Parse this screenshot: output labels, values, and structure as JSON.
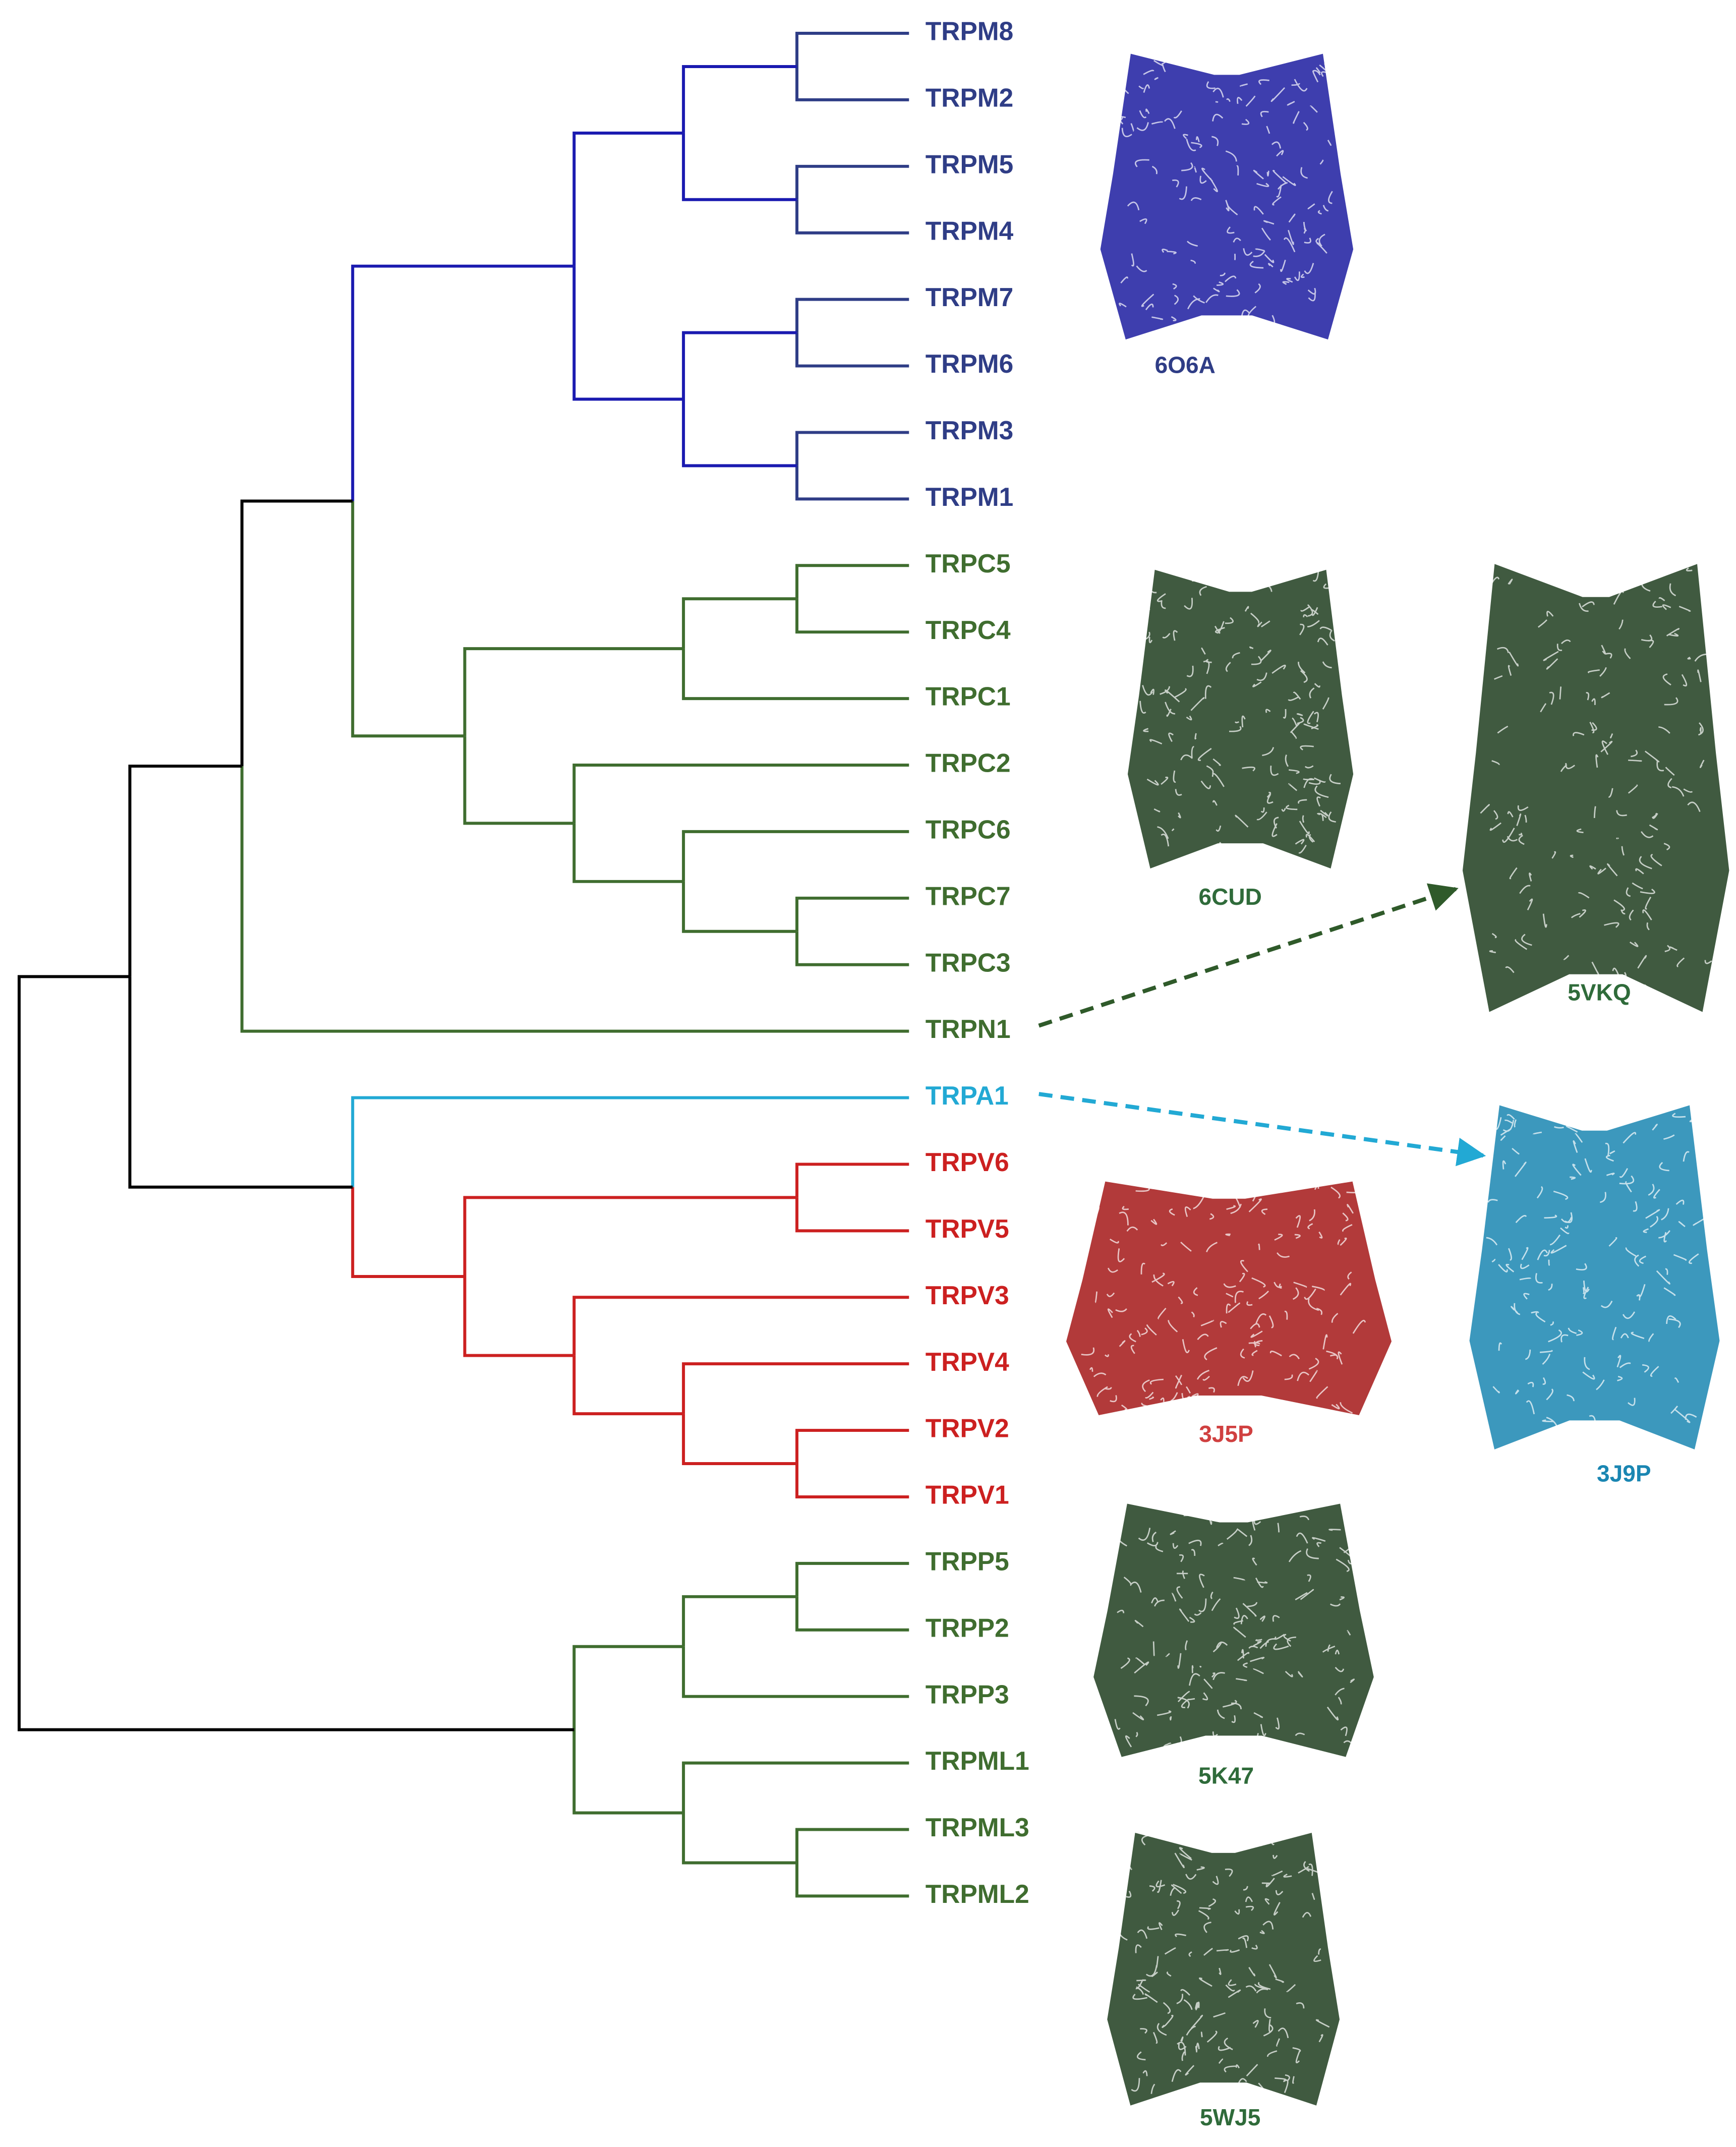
{
  "leaves": [
    {
      "label": "TRPM8",
      "color": "#2f3d86"
    },
    {
      "label": "TRPM2",
      "color": "#2f3d86"
    },
    {
      "label": "TRPM5",
      "color": "#2f3d86"
    },
    {
      "label": "TRPM4",
      "color": "#2f3d86"
    },
    {
      "label": "TRPM7",
      "color": "#2f3d86"
    },
    {
      "label": "TRPM6",
      "color": "#2f3d86"
    },
    {
      "label": "TRPM3",
      "color": "#2f3d86"
    },
    {
      "label": "TRPM1",
      "color": "#2f3d86"
    },
    {
      "label": "TRPC5",
      "color": "#3f6d2f"
    },
    {
      "label": "TRPC4",
      "color": "#3f6d2f"
    },
    {
      "label": "TRPC1",
      "color": "#3f6d2f"
    },
    {
      "label": "TRPC2",
      "color": "#3f6d2f"
    },
    {
      "label": "TRPC6",
      "color": "#3f6d2f"
    },
    {
      "label": "TRPC7",
      "color": "#3f6d2f"
    },
    {
      "label": "TRPC3",
      "color": "#3f6d2f"
    },
    {
      "label": "TRPN1",
      "color": "#3f6d2f"
    },
    {
      "label": "TRPA1",
      "color": "#22a9d4"
    },
    {
      "label": "TRPV6",
      "color": "#cc2020"
    },
    {
      "label": "TRPV5",
      "color": "#cc2020"
    },
    {
      "label": "TRPV3",
      "color": "#cc2020"
    },
    {
      "label": "TRPV4",
      "color": "#cc2020"
    },
    {
      "label": "TRPV2",
      "color": "#cc2020"
    },
    {
      "label": "TRPV1",
      "color": "#cc2020"
    },
    {
      "label": "TRPP5",
      "color": "#3f6d2f"
    },
    {
      "label": "TRPP2",
      "color": "#3f6d2f"
    },
    {
      "label": "TRPP3",
      "color": "#3f6d2f"
    },
    {
      "label": "TRPML1",
      "color": "#3f6d2f"
    },
    {
      "label": "TRPML3",
      "color": "#3f6d2f"
    },
    {
      "label": "TRPML2",
      "color": "#3f6d2f"
    }
  ],
  "structures": [
    {
      "label": "6O6A",
      "color": "#1c1ca0",
      "label_color": "#2f3d86"
    },
    {
      "label": "6CUD",
      "color": "#1f3d1f",
      "label_color": "#2f6b3a"
    },
    {
      "label": "5VKQ",
      "color": "#1f3d1f",
      "label_color": "#2f6b3a"
    },
    {
      "label": "3J9P",
      "color": "#1a86b2",
      "label_color": "#1a86b2"
    },
    {
      "label": "3J5P",
      "color": "#a51818",
      "label_color": "#d04040"
    },
    {
      "label": "5K47",
      "color": "#1f3d1f",
      "label_color": "#2f6b3a"
    },
    {
      "label": "5WJ5",
      "color": "#1f3d1f",
      "label_color": "#2f6b3a"
    }
  ]
}
